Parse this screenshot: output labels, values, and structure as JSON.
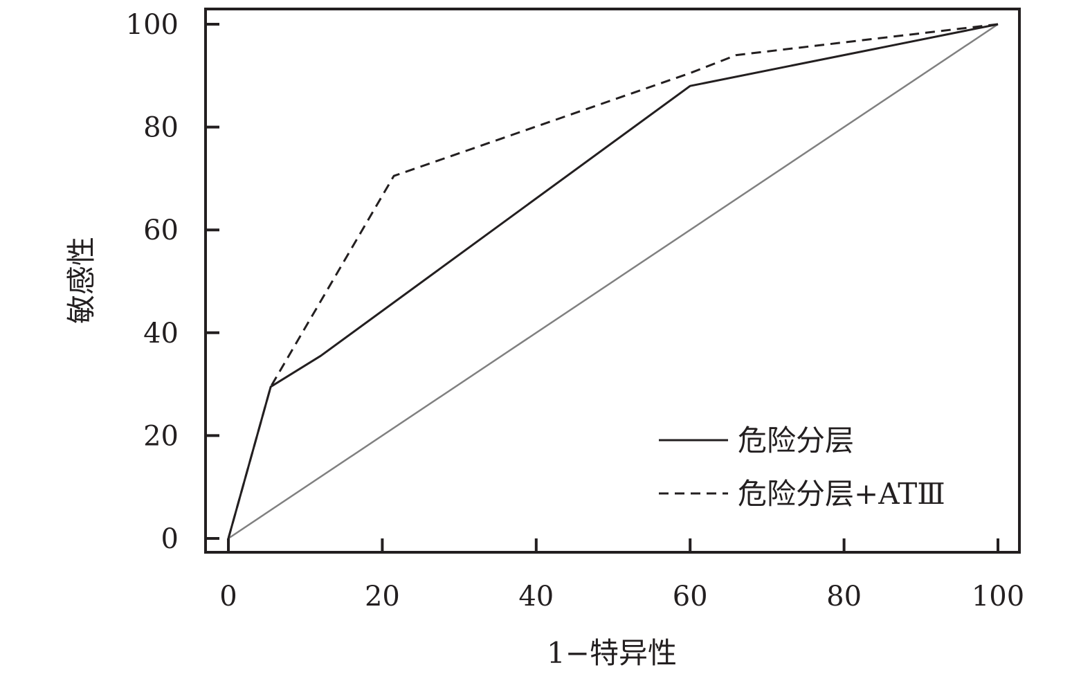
{
  "chart_data": {
    "type": "line",
    "xlabel": "1−特异性",
    "ylabel": "敏感性",
    "xlim": [
      0,
      100
    ],
    "ylim": [
      0,
      100
    ],
    "x_ticks": [
      "0",
      "20",
      "40",
      "60",
      "80",
      "100"
    ],
    "y_ticks": [
      "0",
      "20",
      "40",
      "60",
      "80",
      "100"
    ],
    "grid": false,
    "legend_position": "bottom-right",
    "series": [
      {
        "name": "危险分层",
        "style": "solid",
        "color": "#231f20",
        "points": [
          [
            0,
            0
          ],
          [
            5.5,
            29.5
          ],
          [
            12,
            35.5
          ],
          [
            60,
            88
          ],
          [
            100,
            100
          ]
        ]
      },
      {
        "name": "危险分层+ATⅢ",
        "style": "dashed",
        "color": "#231f20",
        "points": [
          [
            0,
            0
          ],
          [
            5.5,
            29.5
          ],
          [
            21.5,
            70.5
          ],
          [
            60,
            90.5
          ],
          [
            66,
            94
          ],
          [
            100,
            100
          ]
        ]
      }
    ],
    "reference_line": {
      "color": "#808080",
      "points": [
        [
          0,
          0
        ],
        [
          100,
          100
        ]
      ]
    }
  }
}
